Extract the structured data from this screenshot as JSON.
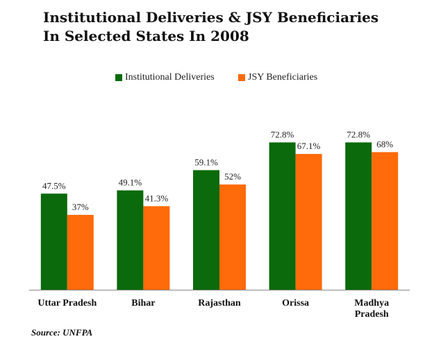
{
  "title_lines": [
    "Institutional Deliveries & JSY Beneficiaries",
    "In Selected States In 2008"
  ],
  "source": "Source: UNFPA",
  "colors": {
    "institutional": "#0b6a0b",
    "jsy": "#ff6a0a",
    "axis": "#888888"
  },
  "chart_data": {
    "type": "bar",
    "title": "Institutional Deliveries & JSY Beneficiaries In Selected States In 2008",
    "categories": [
      "Uttar Pradesh",
      "Bihar",
      "Rajasthan",
      "Orissa",
      "Madhya Pradesh"
    ],
    "category_lines": [
      [
        "Uttar Pradesh"
      ],
      [
        "Bihar"
      ],
      [
        "Rajasthan"
      ],
      [
        "Orissa"
      ],
      [
        "Madhya",
        "Pradesh"
      ]
    ],
    "series": [
      {
        "name": "Institutional Deliveries",
        "values": [
          47.5,
          49.1,
          59.1,
          72.8,
          72.8
        ],
        "labels": [
          "47.5%",
          "49.1%",
          "59.1%",
          "72.8%",
          "72.8%"
        ]
      },
      {
        "name": "JSY Beneficiaries",
        "values": [
          37,
          41.3,
          52,
          67.1,
          68
        ],
        "labels": [
          "37%",
          "41.3%",
          "52%",
          "67.1%",
          "68%"
        ]
      }
    ],
    "ylim": [
      0,
      100
    ],
    "legend": "top",
    "grid": false
  }
}
